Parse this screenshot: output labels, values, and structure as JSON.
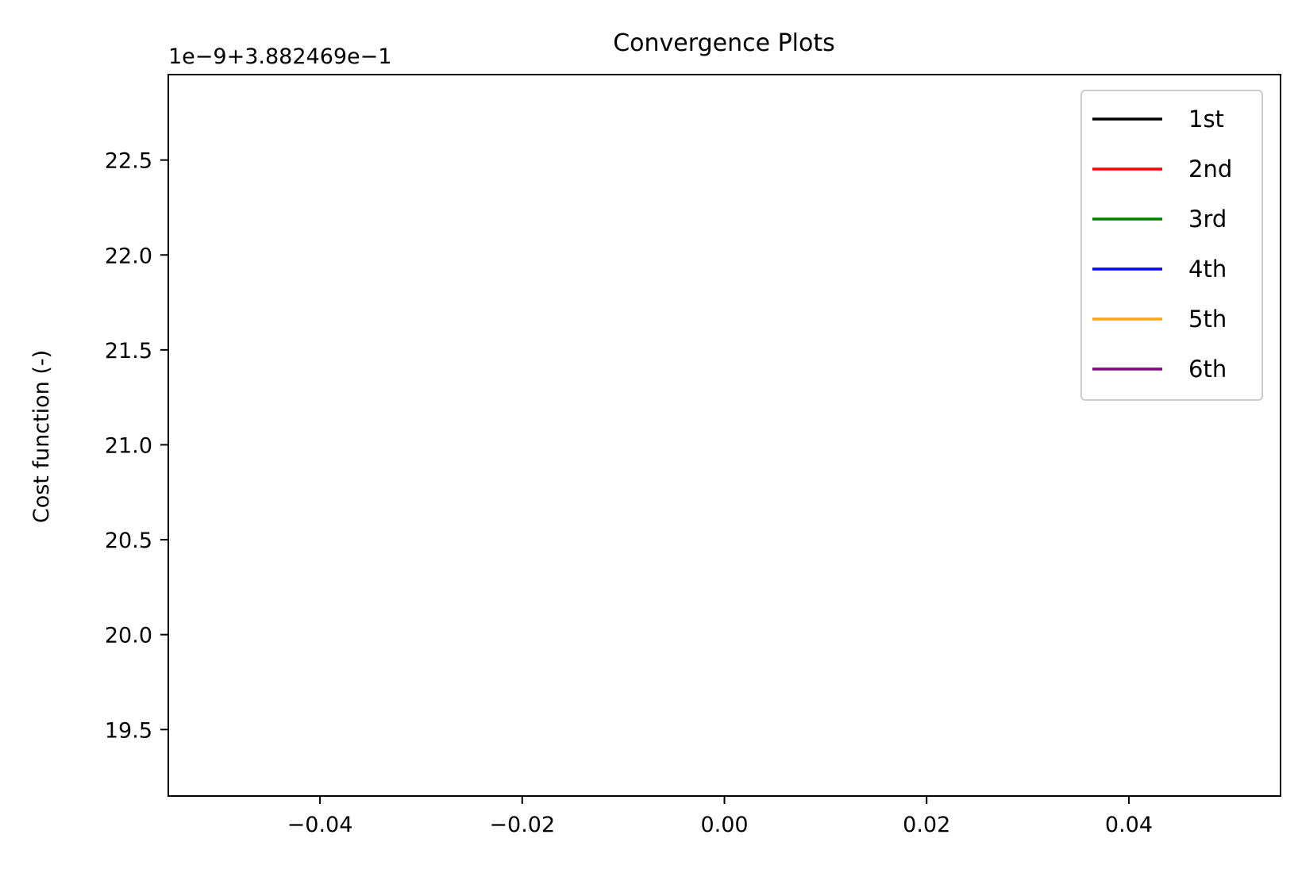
{
  "chart_data": {
    "type": "line",
    "title": "Convergence Plots",
    "xlabel": "",
    "ylabel": "Cost function (-)",
    "offset_text": "1e−9+3.882469e−1",
    "xlim": [
      -0.055,
      0.055
    ],
    "ylim": [
      19.15,
      22.95
    ],
    "x_ticks": [
      {
        "value": -0.04,
        "label": "−0.04"
      },
      {
        "value": -0.02,
        "label": "−0.02"
      },
      {
        "value": 0.0,
        "label": "0.00"
      },
      {
        "value": 0.02,
        "label": "0.02"
      },
      {
        "value": 0.04,
        "label": "0.04"
      }
    ],
    "y_ticks": [
      {
        "value": 19.5,
        "label": "19.5"
      },
      {
        "value": 20.0,
        "label": "20.0"
      },
      {
        "value": 20.5,
        "label": "20.5"
      },
      {
        "value": 21.0,
        "label": "21.0"
      },
      {
        "value": 21.5,
        "label": "21.5"
      },
      {
        "value": 22.0,
        "label": "22.0"
      },
      {
        "value": 22.5,
        "label": "22.5"
      }
    ],
    "grid": false,
    "legend_position": "top-right",
    "series": [
      {
        "name": "1st",
        "color": "#000000",
        "x": [],
        "y": []
      },
      {
        "name": "2nd",
        "color": "#ff0000",
        "x": [],
        "y": []
      },
      {
        "name": "3rd",
        "color": "#008000",
        "x": [],
        "y": []
      },
      {
        "name": "4th",
        "color": "#0000ff",
        "x": [],
        "y": []
      },
      {
        "name": "5th",
        "color": "#ffa500",
        "x": [],
        "y": []
      },
      {
        "name": "6th",
        "color": "#800080",
        "x": [],
        "y": []
      }
    ]
  }
}
